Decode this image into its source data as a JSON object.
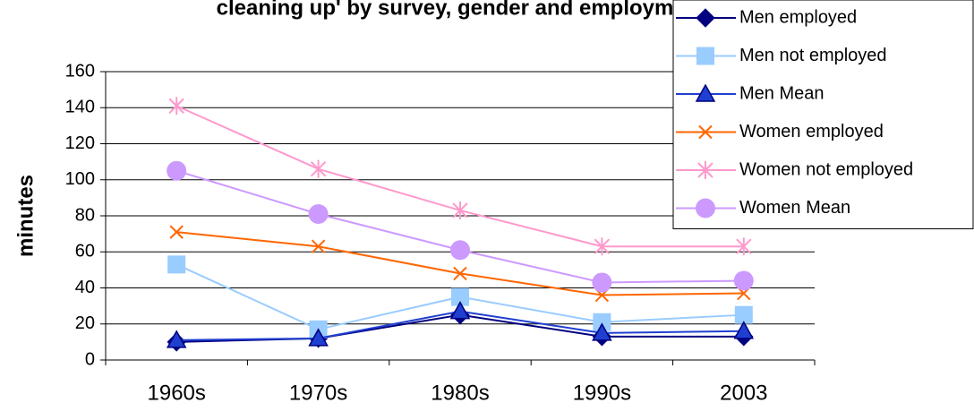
{
  "chart_data": {
    "type": "line",
    "title": "cleaning up' by survey, gender and employment",
    "y_label": "minutes",
    "categories": [
      "1960s",
      "1970s",
      "1980s",
      "1990s",
      "2003"
    ],
    "ylim": [
      0,
      160
    ],
    "yticks": [
      0,
      20,
      40,
      60,
      80,
      100,
      120,
      140,
      160
    ],
    "grid": true,
    "legend": "top-right",
    "series": [
      {
        "name": "Men employed",
        "color": "#000080",
        "marker": "diamond",
        "values": [
          10,
          12,
          25,
          13,
          13
        ]
      },
      {
        "name": "Men not employed",
        "color": "#99ccff",
        "marker": "square",
        "values": [
          53,
          17,
          35,
          21,
          25
        ]
      },
      {
        "name": "Men Mean",
        "color": "#1f3fd0",
        "marker": "triangle",
        "values": [
          11,
          12,
          27,
          15,
          16
        ]
      },
      {
        "name": "Women employed",
        "color": "#ff6600",
        "marker": "x",
        "values": [
          71,
          63,
          48,
          36,
          37
        ]
      },
      {
        "name": "Women not employed",
        "color": "#ff99cc",
        "marker": "star",
        "values": [
          141,
          106,
          83,
          63,
          63
        ]
      },
      {
        "name": "Women Mean",
        "color": "#cc99ff",
        "marker": "circle",
        "values": [
          105,
          81,
          61,
          43,
          44
        ]
      }
    ]
  }
}
